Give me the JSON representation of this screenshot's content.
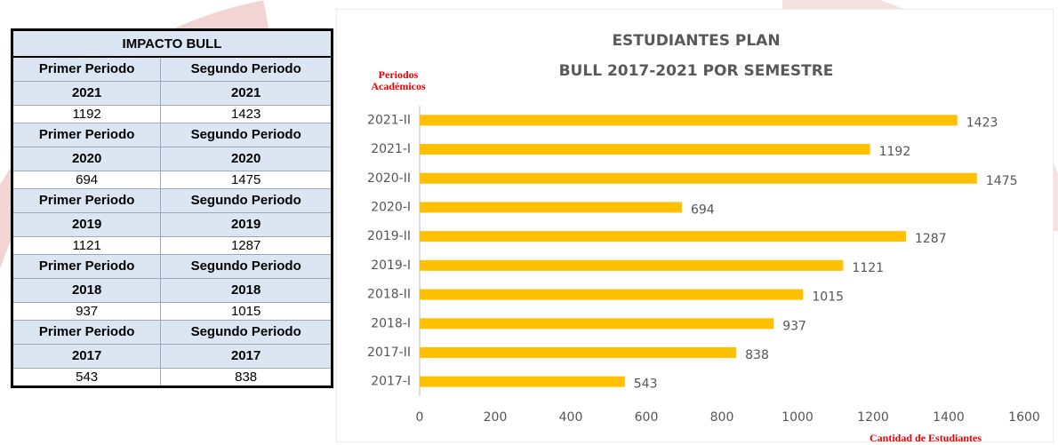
{
  "table": {
    "title": "IMPACTO BULL",
    "groups": [
      {
        "headers": [
          [
            "Primer Periodo",
            "2021"
          ],
          [
            "Segundo Periodo",
            "2021"
          ]
        ],
        "values": [
          1192,
          1423
        ]
      },
      {
        "headers": [
          [
            "Primer Periodo",
            "2020"
          ],
          [
            "Segundo Periodo",
            "2020"
          ]
        ],
        "values": [
          694,
          1475
        ]
      },
      {
        "headers": [
          [
            "Primer Periodo",
            "2019"
          ],
          [
            "Segundo Periodo",
            "2019"
          ]
        ],
        "values": [
          1121,
          1287
        ]
      },
      {
        "headers": [
          [
            "Primer Periodo",
            "2018"
          ],
          [
            "Segundo Periodo",
            "2018"
          ]
        ],
        "values": [
          937,
          1015
        ]
      },
      {
        "headers": [
          [
            "Primer Periodo",
            "2017"
          ],
          [
            "Segundo Periodo",
            "2017"
          ]
        ],
        "values": [
          543,
          838
        ]
      }
    ]
  },
  "chart_data": {
    "type": "hbar",
    "title": [
      "ESTUDIANTES PLAN",
      "BULL 2017-2021 POR SEMESTRE"
    ],
    "ylabel": "Periodos Académicos",
    "xlabel": "Cantidad de Estudiantes",
    "categories": [
      "2021-II",
      "2021-I",
      "2020-II",
      "2020-I",
      "2019-II",
      "2019-I",
      "2018-II",
      "2018-I",
      "2017-II",
      "2017-I"
    ],
    "values": [
      1423,
      1192,
      1475,
      694,
      1287,
      1121,
      1015,
      937,
      838,
      543
    ],
    "color": "#ffc000",
    "xlim": [
      0,
      1600
    ],
    "xticks": [
      0,
      200,
      400,
      600,
      800,
      1000,
      1200,
      1400,
      1600
    ],
    "grid": false
  }
}
